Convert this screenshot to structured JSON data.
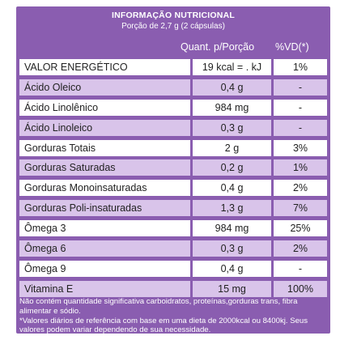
{
  "title": "INFORMAÇÃO NUTRICIONAL",
  "portion": "Porção de 2,7 g (2 cápsulas)",
  "headers": {
    "quantity": "Quant. p/Porção",
    "vd": "%VD(*)"
  },
  "rows": [
    {
      "name": "VALOR ENERGÉTICO",
      "quantity": "19 kcal = . kJ",
      "vd": "1%"
    },
    {
      "name": "Ácido Oleico",
      "quantity": "0,4 g",
      "vd": "-"
    },
    {
      "name": "Ácido Linolênico",
      "quantity": "984 mg",
      "vd": "-"
    },
    {
      "name": "Ácido Linoleico",
      "quantity": "0,3 g",
      "vd": "-"
    },
    {
      "name": "Gorduras Totais",
      "quantity": "2 g",
      "vd": "3%"
    },
    {
      "name": "Gorduras Saturadas",
      "quantity": "0,2 g",
      "vd": "1%"
    },
    {
      "name": "Gorduras Monoinsaturadas",
      "quantity": "0,4 g",
      "vd": "2%"
    },
    {
      "name": "Gorduras Poli-insaturadas",
      "quantity": "1,3 g",
      "vd": "7%"
    },
    {
      "name": "Ômega 3",
      "quantity": "984 mg",
      "vd": "25%"
    },
    {
      "name": "Ômega 6",
      "quantity": "0,3 g",
      "vd": "2%"
    },
    {
      "name": "Ômega 9",
      "quantity": "0,4 g",
      "vd": "-"
    },
    {
      "name": "Vitamina E",
      "quantity": "15 mg",
      "vd": "100%"
    }
  ],
  "footnote_1": "Não contém quantidade significativa carboidratos, proteínas,gorduras trans, fibra alimentar e sódio.",
  "footnote_2": "*Valores diários de referência com base em uma dieta de 2000kcal ou 8400kj. Seus valores podem variar dependendo de sua necessidade.",
  "colors": {
    "panel": "#8a5db0",
    "row_white": "#ffffff",
    "row_lilac": "#d9c4ea",
    "text_dark": "#222222"
  }
}
